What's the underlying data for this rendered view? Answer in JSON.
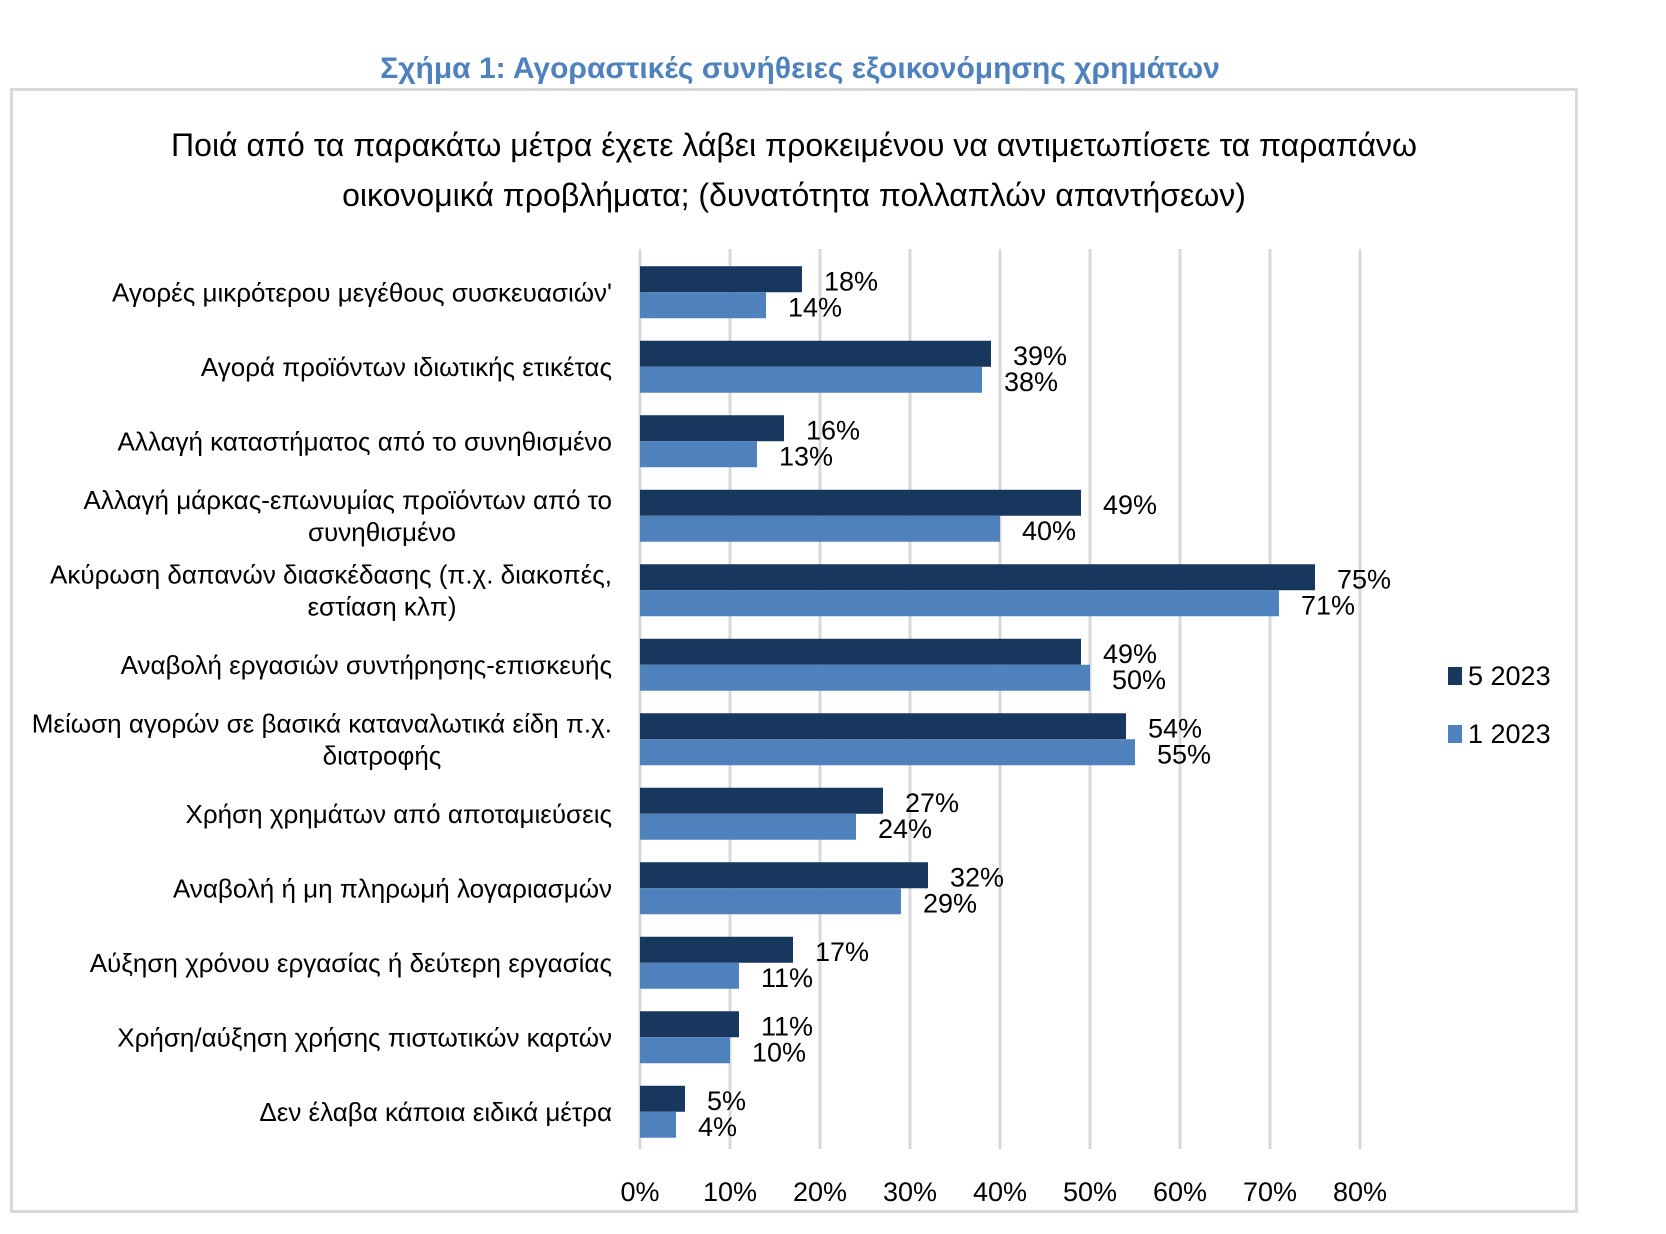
{
  "figure_caption": "Σχήμα 1: Αγοραστικές συνήθειες εξοικονόμησης χρημάτων",
  "chart_data": {
    "type": "bar",
    "orientation": "horizontal",
    "title_lines": [
      "Ποιά από τα παρακάτω μέτρα έχετε λάβει προκειμένου να αντιμετωπίσετε τα παραπάνω",
      "οικονομικά προβλήματα; (δυνατότητα πολλαπλών απαντήσεων)"
    ],
    "categories": [
      [
        "Αγορές μικρότερου μεγέθους συσκευασιών'"
      ],
      [
        "Αγορά προϊόντων ιδιωτικής ετικέτας"
      ],
      [
        "Αλλαγή καταστήματος από το συνηθισμένο"
      ],
      [
        "Αλλαγή μάρκας-επωνυμίας προϊόντων από το",
        "συνηθισμένο"
      ],
      [
        "Ακύρωση δαπανών διασκέδασης (π.χ. διακοπές,",
        "εστίαση κλπ)"
      ],
      [
        "Αναβολή εργασιών συντήρησης-επισκευής"
      ],
      [
        "Μείωση αγορών σε βασικά καταναλωτικά είδη π.χ.",
        "διατροφής"
      ],
      [
        "Χρήση χρημάτων από αποταμιεύσεις"
      ],
      [
        "Αναβολή ή μη πληρωμή λογαριασμών"
      ],
      [
        "Αύξηση χρόνου εργασίας ή δεύτερη εργασίας"
      ],
      [
        "Χρήση/αύξηση χρήσης πιστωτικών καρτών"
      ],
      [
        "Δεν έλαβα κάποια ειδικά μέτρα"
      ]
    ],
    "series": [
      {
        "name": "5 2023",
        "color": "#17375e",
        "values": [
          18,
          39,
          16,
          49,
          75,
          49,
          54,
          27,
          32,
          17,
          11,
          5
        ]
      },
      {
        "name": "1 2023",
        "color": "#4f81bd",
        "values": [
          14,
          38,
          13,
          40,
          71,
          50,
          55,
          24,
          29,
          11,
          10,
          4
        ]
      }
    ],
    "value_suffix": "%",
    "xlim": [
      0,
      80
    ],
    "xticks": [
      0,
      10,
      20,
      30,
      40,
      50,
      60,
      70,
      80
    ],
    "xtick_labels": [
      "0%",
      "10%",
      "20%",
      "30%",
      "40%",
      "50%",
      "60%",
      "70%",
      "80%"
    ],
    "grid": "vertical",
    "legend_position": "right",
    "xlabel": "",
    "ylabel": ""
  }
}
